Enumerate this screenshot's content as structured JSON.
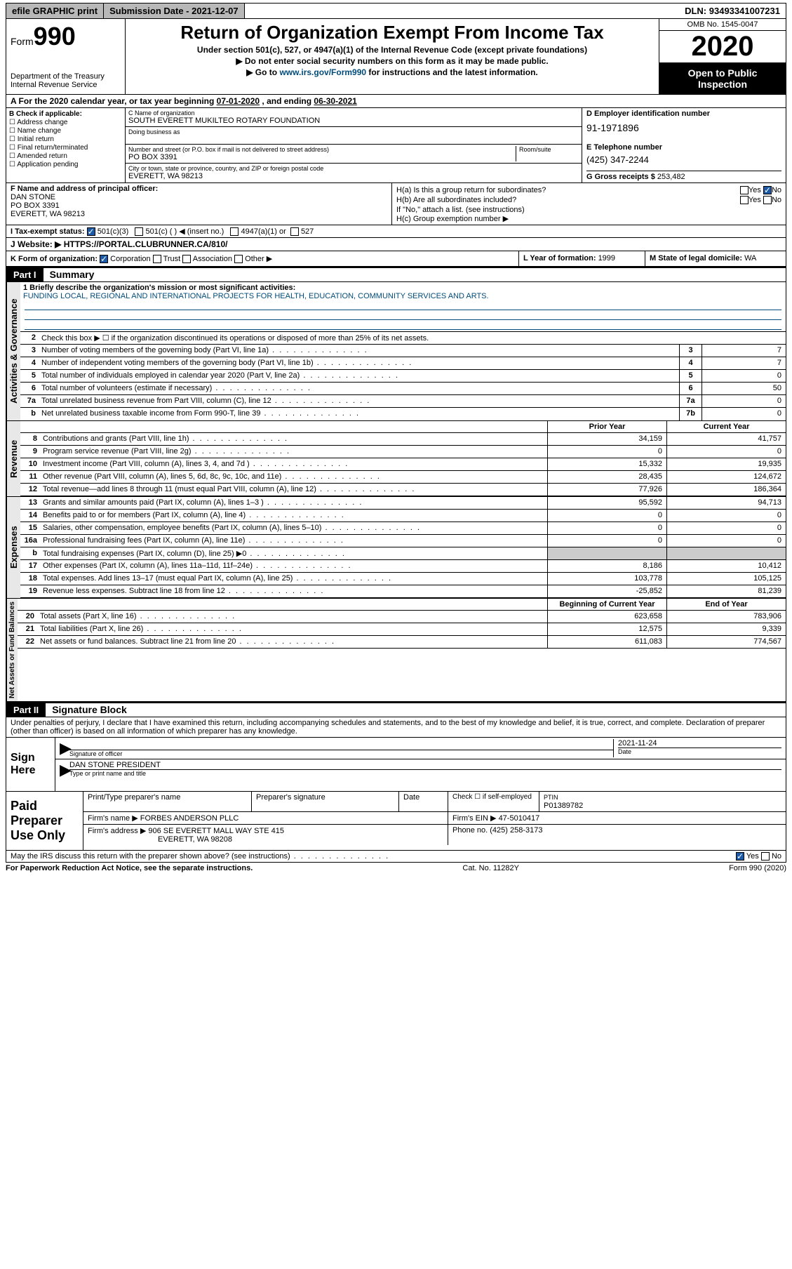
{
  "topbar": {
    "efile": "efile GRAPHIC print",
    "subdate_lbl": "Submission Date - ",
    "subdate": "2021-12-07",
    "dln_lbl": "DLN: ",
    "dln": "93493341007231"
  },
  "header": {
    "form_word": "Form",
    "form_num": "990",
    "dept": "Department of the Treasury\nInternal Revenue Service",
    "title": "Return of Organization Exempt From Income Tax",
    "sub1": "Under section 501(c), 527, or 4947(a)(1) of the Internal Revenue Code (except private foundations)",
    "sub2": "▶ Do not enter social security numbers on this form as it may be made public.",
    "sub3a": "▶ Go to ",
    "sub3_link": "www.irs.gov/Form990",
    "sub3b": " for instructions and the latest information.",
    "omb": "OMB No. 1545-0047",
    "year": "2020",
    "open1": "Open to Public",
    "open2": "Inspection"
  },
  "period": {
    "pre": "A   For the 2020 calendar year, or tax year beginning ",
    "begin": "07-01-2020",
    "mid": " , and ending ",
    "end": "06-30-2021"
  },
  "B": {
    "hdr": "B Check if applicable:",
    "items": [
      "☐ Address change",
      "☐ Name change",
      "☐ Initial return",
      "☐ Final return/terminated",
      "☐ Amended return",
      "☐ Application pending"
    ]
  },
  "C": {
    "name_lbl": "C Name of organization",
    "name": "SOUTH EVERETT MUKILTEO ROTARY FOUNDATION",
    "dba_lbl": "Doing business as",
    "street_lbl": "Number and street (or P.O. box if mail is not delivered to street address)",
    "room_lbl": "Room/suite",
    "street": "PO BOX 3391",
    "city_lbl": "City or town, state or province, country, and ZIP or foreign postal code",
    "city": "EVERETT, WA  98213"
  },
  "D": {
    "lbl": "D Employer identification number",
    "val": "91-1971896"
  },
  "E": {
    "lbl": "E Telephone number",
    "val": "(425) 347-2244"
  },
  "G": {
    "lbl": "G Gross receipts $ ",
    "val": "253,482"
  },
  "F": {
    "lbl": "F  Name and address of principal officer:",
    "name": "DAN STONE",
    "addr1": "PO BOX 3391",
    "addr2": "EVERETT, WA  98213"
  },
  "H": {
    "a": "H(a)  Is this a group return for subordinates?",
    "b": "H(b)  Are all subordinates included?",
    "b2": "If \"No,\" attach a list. (see instructions)",
    "c": "H(c)  Group exemption number ▶",
    "yes": "Yes",
    "no": "No"
  },
  "I": {
    "lbl": "I   Tax-exempt status:",
    "o1": "501(c)(3)",
    "o2": "501(c) (  ) ◀ (insert no.)",
    "o3": "4947(a)(1) or",
    "o4": "527"
  },
  "J": {
    "lbl": "J   Website: ▶",
    "val": " HTTPS://PORTAL.CLUBRUNNER.CA/810/"
  },
  "K": {
    "lbl": "K Form of organization:",
    "o1": "Corporation",
    "o2": "Trust",
    "o3": "Association",
    "o4": "Other ▶"
  },
  "L": {
    "lbl": "L Year of formation: ",
    "val": "1999"
  },
  "M": {
    "lbl": "M State of legal domicile: ",
    "val": "WA"
  },
  "partI": {
    "num": "Part I",
    "title": "Summary"
  },
  "gov": {
    "tab": "Activities & Governance",
    "l1_lbl": "1  Briefly describe the organization's mission or most significant activities:",
    "l1_val": "FUNDING LOCAL, REGIONAL AND INTERNATIONAL PROJECTS FOR HEALTH, EDUCATION, COMMUNITY SERVICES AND ARTS.",
    "l2": "Check this box ▶ ☐  if the organization discontinued its operations or disposed of more than 25% of its net assets.",
    "rows": [
      {
        "n": "3",
        "t": "Number of voting members of the governing body (Part VI, line 1a)",
        "b": "3",
        "v": "7"
      },
      {
        "n": "4",
        "t": "Number of independent voting members of the governing body (Part VI, line 1b)",
        "b": "4",
        "v": "7"
      },
      {
        "n": "5",
        "t": "Total number of individuals employed in calendar year 2020 (Part V, line 2a)",
        "b": "5",
        "v": "0"
      },
      {
        "n": "6",
        "t": "Total number of volunteers (estimate if necessary)",
        "b": "6",
        "v": "50"
      },
      {
        "n": "7a",
        "t": "Total unrelated business revenue from Part VIII, column (C), line 12",
        "b": "7a",
        "v": "0"
      },
      {
        "n": "b",
        "t": "Net unrelated business taxable income from Form 990-T, line 39",
        "b": "7b",
        "v": "0"
      }
    ]
  },
  "rev": {
    "tab": "Revenue",
    "py_hdr": "Prior Year",
    "cy_hdr": "Current Year",
    "rows": [
      {
        "n": "8",
        "t": "Contributions and grants (Part VIII, line 1h)",
        "py": "34,159",
        "cy": "41,757"
      },
      {
        "n": "9",
        "t": "Program service revenue (Part VIII, line 2g)",
        "py": "0",
        "cy": "0"
      },
      {
        "n": "10",
        "t": "Investment income (Part VIII, column (A), lines 3, 4, and 7d )",
        "py": "15,332",
        "cy": "19,935"
      },
      {
        "n": "11",
        "t": "Other revenue (Part VIII, column (A), lines 5, 6d, 8c, 9c, 10c, and 11e)",
        "py": "28,435",
        "cy": "124,672"
      },
      {
        "n": "12",
        "t": "Total revenue—add lines 8 through 11 (must equal Part VIII, column (A), line 12)",
        "py": "77,926",
        "cy": "186,364"
      }
    ]
  },
  "exp": {
    "tab": "Expenses",
    "rows": [
      {
        "n": "13",
        "t": "Grants and similar amounts paid (Part IX, column (A), lines 1–3 )",
        "py": "95,592",
        "cy": "94,713"
      },
      {
        "n": "14",
        "t": "Benefits paid to or for members (Part IX, column (A), line 4)",
        "py": "0",
        "cy": "0"
      },
      {
        "n": "15",
        "t": "Salaries, other compensation, employee benefits (Part IX, column (A), lines 5–10)",
        "py": "0",
        "cy": "0"
      },
      {
        "n": "16a",
        "t": "Professional fundraising fees (Part IX, column (A), line 11e)",
        "py": "0",
        "cy": "0"
      },
      {
        "n": "b",
        "t": "Total fundraising expenses (Part IX, column (D), line 25) ▶0",
        "py": "",
        "cy": "",
        "gray": true
      },
      {
        "n": "17",
        "t": "Other expenses (Part IX, column (A), lines 11a–11d, 11f–24e)",
        "py": "8,186",
        "cy": "10,412"
      },
      {
        "n": "18",
        "t": "Total expenses. Add lines 13–17 (must equal Part IX, column (A), line 25)",
        "py": "103,778",
        "cy": "105,125"
      },
      {
        "n": "19",
        "t": "Revenue less expenses. Subtract line 18 from line 12",
        "py": "-25,852",
        "cy": "81,239"
      }
    ]
  },
  "net": {
    "tab": "Net Assets or Fund Balances",
    "py_hdr": "Beginning of Current Year",
    "cy_hdr": "End of Year",
    "rows": [
      {
        "n": "20",
        "t": "Total assets (Part X, line 16)",
        "py": "623,658",
        "cy": "783,906"
      },
      {
        "n": "21",
        "t": "Total liabilities (Part X, line 26)",
        "py": "12,575",
        "cy": "9,339"
      },
      {
        "n": "22",
        "t": "Net assets or fund balances. Subtract line 21 from line 20",
        "py": "611,083",
        "cy": "774,567"
      }
    ]
  },
  "partII": {
    "num": "Part II",
    "title": "Signature Block"
  },
  "penalty": "Under penalties of perjury, I declare that I have examined this return, including accompanying schedules and statements, and to the best of my knowledge and belief, it is true, correct, and complete. Declaration of preparer (other than officer) is based on all information of which preparer has any knowledge.",
  "sign": {
    "here": "Sign Here",
    "sig_lbl": "Signature of officer",
    "date_lbl": "Date",
    "date_val": "2021-11-24",
    "name": "DAN STONE  PRESIDENT",
    "name_lbl": "Type or print name and title"
  },
  "prep": {
    "lbl": "Paid Preparer Use Only",
    "h1": "Print/Type preparer's name",
    "h2": "Preparer's signature",
    "h3": "Date",
    "h4": "Check ☐ if self-employed",
    "h5_lbl": "PTIN",
    "h5": "P01389782",
    "firm_lbl": "Firm's name    ▶",
    "firm": "FORBES ANDERSON PLLC",
    "ein_lbl": "Firm's EIN ▶ ",
    "ein": "47-5010417",
    "addr_lbl": "Firm's address ▶",
    "addr1": "906 SE EVERETT MALL WAY STE 415",
    "addr2": "EVERETT, WA  98208",
    "phone_lbl": "Phone no. ",
    "phone": "(425) 258-3173"
  },
  "discuss": {
    "txt": "May the IRS discuss this return with the preparer shown above? (see instructions)",
    "yes": "Yes",
    "no": "No"
  },
  "foot": {
    "l": "For Paperwork Reduction Act Notice, see the separate instructions.",
    "c": "Cat. No. 11282Y",
    "r": "Form 990 (2020)"
  }
}
